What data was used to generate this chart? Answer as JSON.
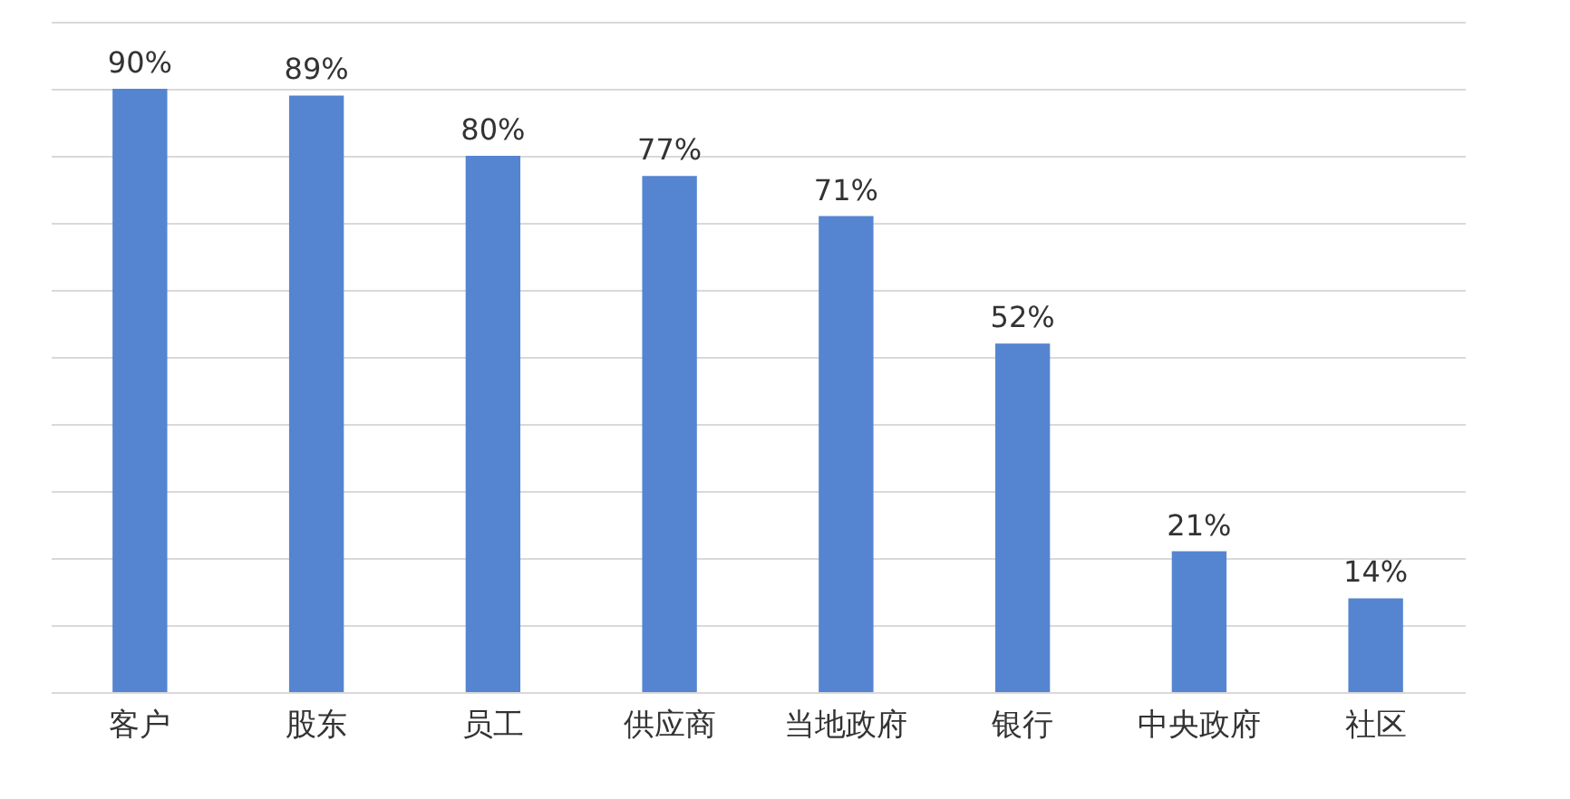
{
  "chart_data": {
    "type": "bar",
    "categories": [
      "客户",
      "股东",
      "员工",
      "供应商",
      "当地政府",
      "银行",
      "中央政府",
      "社区"
    ],
    "values": [
      90,
      89,
      80,
      77,
      71,
      52,
      21,
      14
    ],
    "color": "#5585d0",
    "value_labels": [
      "90%",
      "89%",
      "80%",
      "77%",
      "71%",
      "52%",
      "21%",
      "14%"
    ],
    "ylim": [
      0,
      100
    ],
    "yticks": [
      {
        "value": 0,
        "label": null
      },
      {
        "value": 10,
        "label": null
      },
      {
        "value": 20,
        "label": null
      },
      {
        "value": 30,
        "label": null
      },
      {
        "value": 40,
        "label": null
      },
      {
        "value": 50,
        "label": null
      },
      {
        "value": 60,
        "label": null
      },
      {
        "value": 70,
        "label": null
      },
      {
        "value": 80,
        "label": null
      },
      {
        "value": 90,
        "label": null
      },
      {
        "value": 100,
        "label": null
      }
    ],
    "grid": "y",
    "tick_labels": "x"
  }
}
